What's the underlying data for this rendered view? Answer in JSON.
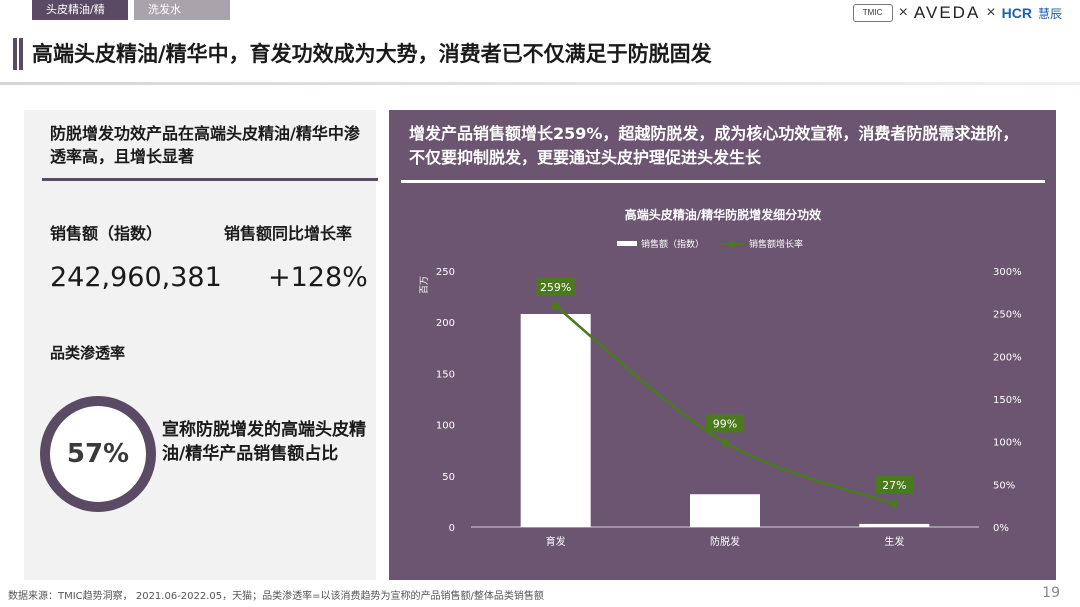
{
  "tabs": [
    {
      "label": "头皮精油/精华"
    },
    {
      "label": "洗发水"
    }
  ],
  "logos": {
    "tmic": "TMIC",
    "x1": "×",
    "aveda": "AVEDA",
    "x2": "×",
    "hcr": "HCR",
    "hcr_cn": "慧辰"
  },
  "title": "高端头皮精油/精华中，育发功效成为大势，消费者已不仅满足于防脱固发",
  "left": {
    "heading": "防脱增发功效产品在高端头皮精油/精华中渗透率高，且增长显著",
    "sales_label": "销售额（指数）",
    "sales_value": "242,960,381",
    "growth_label": "销售额同比增长率",
    "growth_value": "+128%",
    "penetration_label": "品类渗透率",
    "penetration_value": "57%",
    "penetration_desc": "宣称防脱增发的高端头皮精油/精华产品销售额占比"
  },
  "right": {
    "heading": "增发产品销售额增长259%，超越防脱发，成为核心功效宣称，消费者防脱需求进阶，不仅要抑制脱发，更要通过头皮护理促进头发生长"
  },
  "chart_data": {
    "type": "bar",
    "title": "高端头皮精油/精华防脱增发细分功效",
    "categories": [
      "育发",
      "防脱发",
      "生发"
    ],
    "series": [
      {
        "name": "销售额（指数）",
        "type": "bar",
        "axis": "left",
        "values": [
          208,
          32,
          3
        ]
      },
      {
        "name": "销售额增长率",
        "type": "line",
        "axis": "right",
        "values": [
          259,
          99,
          27
        ],
        "labels": [
          "259%",
          "99%",
          "27%"
        ]
      }
    ],
    "ylabel": "百万",
    "ylim": [
      0,
      250
    ],
    "yticks": [
      "0",
      "50",
      "100",
      "150",
      "200",
      "250"
    ],
    "y2lim": [
      0,
      300
    ],
    "y2ticks": [
      "0%",
      "50%",
      "100%",
      "150%",
      "200%",
      "250%",
      "300%"
    ],
    "grid": false,
    "legend": "top",
    "colors": {
      "bar": "#ffffff",
      "line": "#4a7a1c",
      "label_bg": "#4a7a1c"
    }
  },
  "footer": {
    "source": "数据来源：TMIC趋势洞察， 2021.06-2022.05，天猫；品类渗透率=以该消费趋势为宣称的产品销售额/整体品类销售额",
    "page": "19"
  }
}
